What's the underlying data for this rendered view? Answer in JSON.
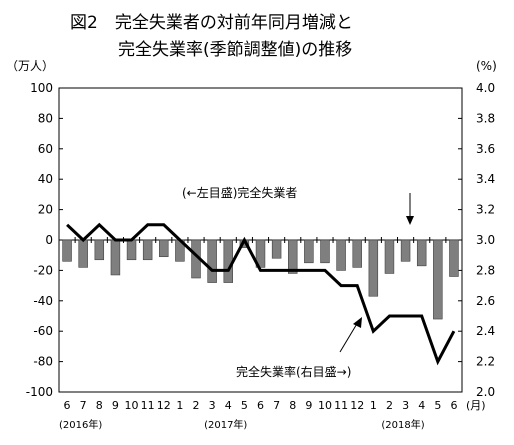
{
  "chart_data": {
    "type": "bar+line",
    "title_line1": "図2　完全失業者の対前年同月増減と",
    "title_line2": "完全失業率(季節調整値)の推移",
    "left_axis_label": "（万人）",
    "right_axis_label": "(%)",
    "left_ylim": [
      -100,
      100
    ],
    "left_ticks": [
      "100",
      "80",
      "60",
      "40",
      "20",
      "0",
      "-20",
      "-40",
      "-60",
      "-80",
      "-100"
    ],
    "right_ylim": [
      2.0,
      4.0
    ],
    "right_ticks": [
      "4.0",
      "3.8",
      "3.6",
      "3.4",
      "3.2",
      "3.0",
      "2.8",
      "2.6",
      "2.4",
      "2.2",
      "2.0"
    ],
    "categories": [
      "6",
      "7",
      "8",
      "9",
      "10",
      "11",
      "12",
      "1",
      "2",
      "3",
      "4",
      "5",
      "6",
      "7",
      "8",
      "9",
      "10",
      "11",
      "12",
      "1",
      "2",
      "3",
      "4",
      "5",
      "6"
    ],
    "x_unit": "(月)",
    "year_labels": [
      {
        "label": "(2016年)",
        "index": 0
      },
      {
        "label": "(2017年)",
        "index": 9
      },
      {
        "label": "(2018年)",
        "index": 20
      }
    ],
    "series": [
      {
        "name": "完全失業者",
        "axis": "left",
        "type": "bar",
        "values": [
          -14,
          -18,
          -13,
          -23,
          -13,
          -13,
          -11,
          -14,
          -25,
          -28,
          -28,
          -5,
          -18,
          -12,
          -22,
          -15,
          -15,
          -20,
          -18,
          -37,
          -22,
          -14,
          -17,
          -52,
          -24
        ]
      },
      {
        "name": "完全失業率",
        "axis": "right",
        "type": "line",
        "values": [
          3.1,
          3.0,
          3.1,
          3.0,
          3.0,
          3.1,
          3.1,
          3.0,
          2.9,
          2.8,
          2.8,
          3.0,
          2.8,
          2.8,
          2.8,
          2.8,
          2.8,
          2.7,
          2.7,
          2.4,
          2.5,
          2.5,
          2.5,
          2.2,
          2.4
        ]
      }
    ],
    "annotations": {
      "bars_label": "(←左目盛)完全失業者",
      "line_label": "完全失業率(右目盛→)"
    },
    "colors": {
      "bar_fill": "#7f7f7f",
      "bar_stroke": "#404040",
      "line": "#000000",
      "axis": "#000000"
    },
    "grid": false
  }
}
